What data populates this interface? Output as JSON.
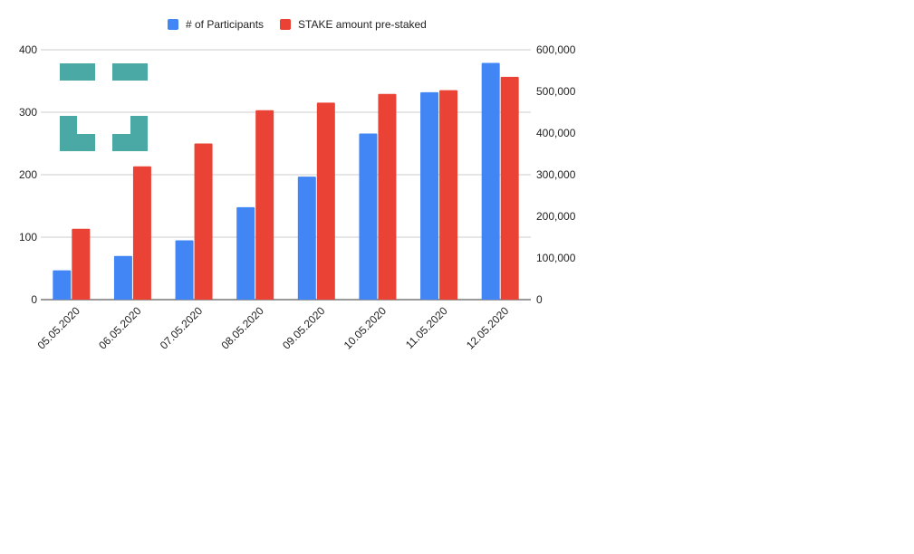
{
  "chart_data": {
    "type": "bar",
    "categories": [
      "05.05.2020",
      "06.05.2020",
      "07.05.2020",
      "08.05.2020",
      "09.05.2020",
      "10.05.2020",
      "11.05.2020",
      "12.05.2020"
    ],
    "series": [
      {
        "name": "# of Participants",
        "axis": "left",
        "color": "#4285f4",
        "values": [
          47,
          70,
          95,
          148,
          197,
          266,
          332,
          379
        ]
      },
      {
        "name": "STAKE amount pre-staked",
        "axis": "right",
        "color": "#ea4335",
        "values": [
          170000,
          320000,
          375000,
          455000,
          473000,
          494000,
          503000,
          535000
        ]
      }
    ],
    "y_left": {
      "min": 0,
      "max": 400,
      "ticks": [
        "0",
        "100",
        "200",
        "300",
        "400"
      ]
    },
    "y_right": {
      "min": 0,
      "max": 600000,
      "ticks": [
        "0",
        "100,000",
        "200,000",
        "300,000",
        "400,000",
        "500,000",
        "600,000"
      ]
    },
    "legend_position": "top",
    "grid": true,
    "watermark_color": "#4aa9a4"
  }
}
